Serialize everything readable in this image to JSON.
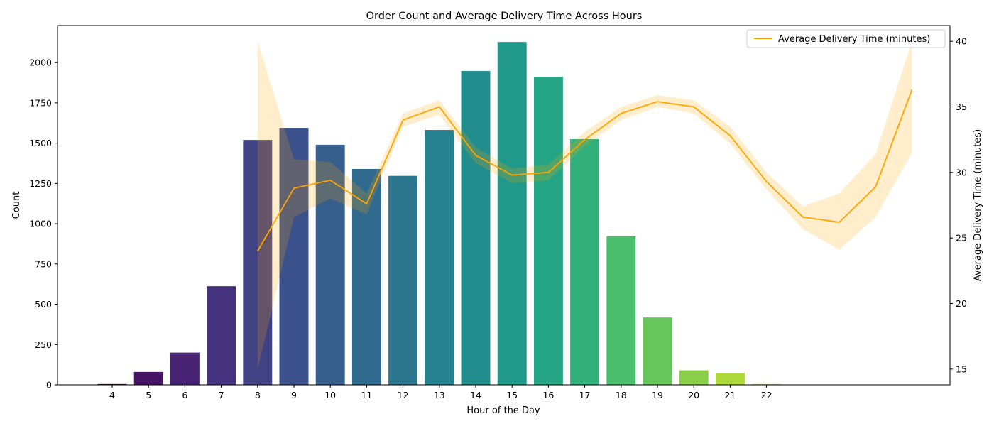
{
  "chart_data": {
    "type": "bar+line",
    "title": "Order Count and Average Delivery Time Across Hours",
    "xlabel": "Hour of the Day",
    "ylabel": "Count",
    "y2label": "Average Delivery Time (minutes)",
    "ylim": [
      0,
      2230
    ],
    "y2lim": [
      13.8,
      41.2
    ],
    "yticks": [
      0,
      250,
      500,
      750,
      1000,
      1250,
      1500,
      1750,
      2000
    ],
    "y2ticks": [
      15,
      20,
      25,
      30,
      35,
      40
    ],
    "grid": false,
    "legend_position": "top-right",
    "bar_series": {
      "name": "Order Count",
      "categories": [
        "4",
        "5",
        "6",
        "7",
        "8",
        "9",
        "10",
        "11",
        "12",
        "13",
        "14",
        "15",
        "16",
        "17",
        "18",
        "19",
        "20",
        "21",
        "22"
      ],
      "values": [
        5,
        80,
        200,
        612,
        1520,
        1595,
        1490,
        1340,
        1297,
        1582,
        1948,
        2128,
        1912,
        1525,
        922,
        418,
        90,
        75,
        5
      ],
      "colors": [
        "#440154",
        "#471365",
        "#482374",
        "#45337d",
        "#404284",
        "#3b518b",
        "#355e8d",
        "#306a8e",
        "#2b758e",
        "#26828e",
        "#228d8d",
        "#1f998a",
        "#25a584",
        "#31b07b",
        "#4bbd6d",
        "#66c65b",
        "#89d048",
        "#acd939",
        "#d5e21a"
      ]
    },
    "line_series": {
      "name": "Average Delivery Time (minutes)",
      "color": "#ffa500",
      "x": [
        8,
        9,
        10,
        11,
        12,
        13,
        14,
        15,
        16,
        17,
        18,
        19,
        20,
        21,
        22,
        23,
        24,
        25,
        26
      ],
      "values": [
        24.0,
        28.8,
        29.4,
        27.6,
        34.0,
        35.0,
        31.3,
        29.8,
        30.0,
        32.5,
        34.5,
        35.4,
        35.0,
        32.8,
        29.3,
        26.6,
        26.2,
        28.9,
        36.3
      ],
      "ci_lower": [
        15.0,
        26.6,
        28.0,
        26.8,
        33.5,
        34.4,
        30.7,
        29.2,
        29.4,
        32.0,
        34.0,
        35.0,
        34.5,
        32.2,
        28.7,
        25.7,
        24.1,
        26.6,
        31.5
      ],
      "ci_upper": [
        40.0,
        31.0,
        30.8,
        28.4,
        34.5,
        35.5,
        31.9,
        30.3,
        30.6,
        33.1,
        35.0,
        35.9,
        35.5,
        33.5,
        30.0,
        27.4,
        28.4,
        31.4,
        40.0
      ]
    }
  }
}
